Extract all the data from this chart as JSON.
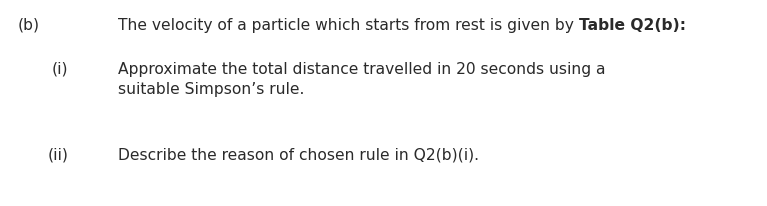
{
  "background_color": "#ffffff",
  "label_b": "(b)",
  "label_i": "(i)",
  "label_ii": "(ii)",
  "line1_normal": "The velocity of a particle which starts from rest is given by ",
  "line1_bold": "Table Q2(b):",
  "line2_text": "Approximate the total distance travelled in 20 seconds using a",
  "line3_text": "suitable Simpson’s rule.",
  "line4_text": "Describe the reason of chosen rule in Q2(b)(i).",
  "font_size": 11.2,
  "text_color": "#2a2a2a",
  "background_color_str": "white"
}
